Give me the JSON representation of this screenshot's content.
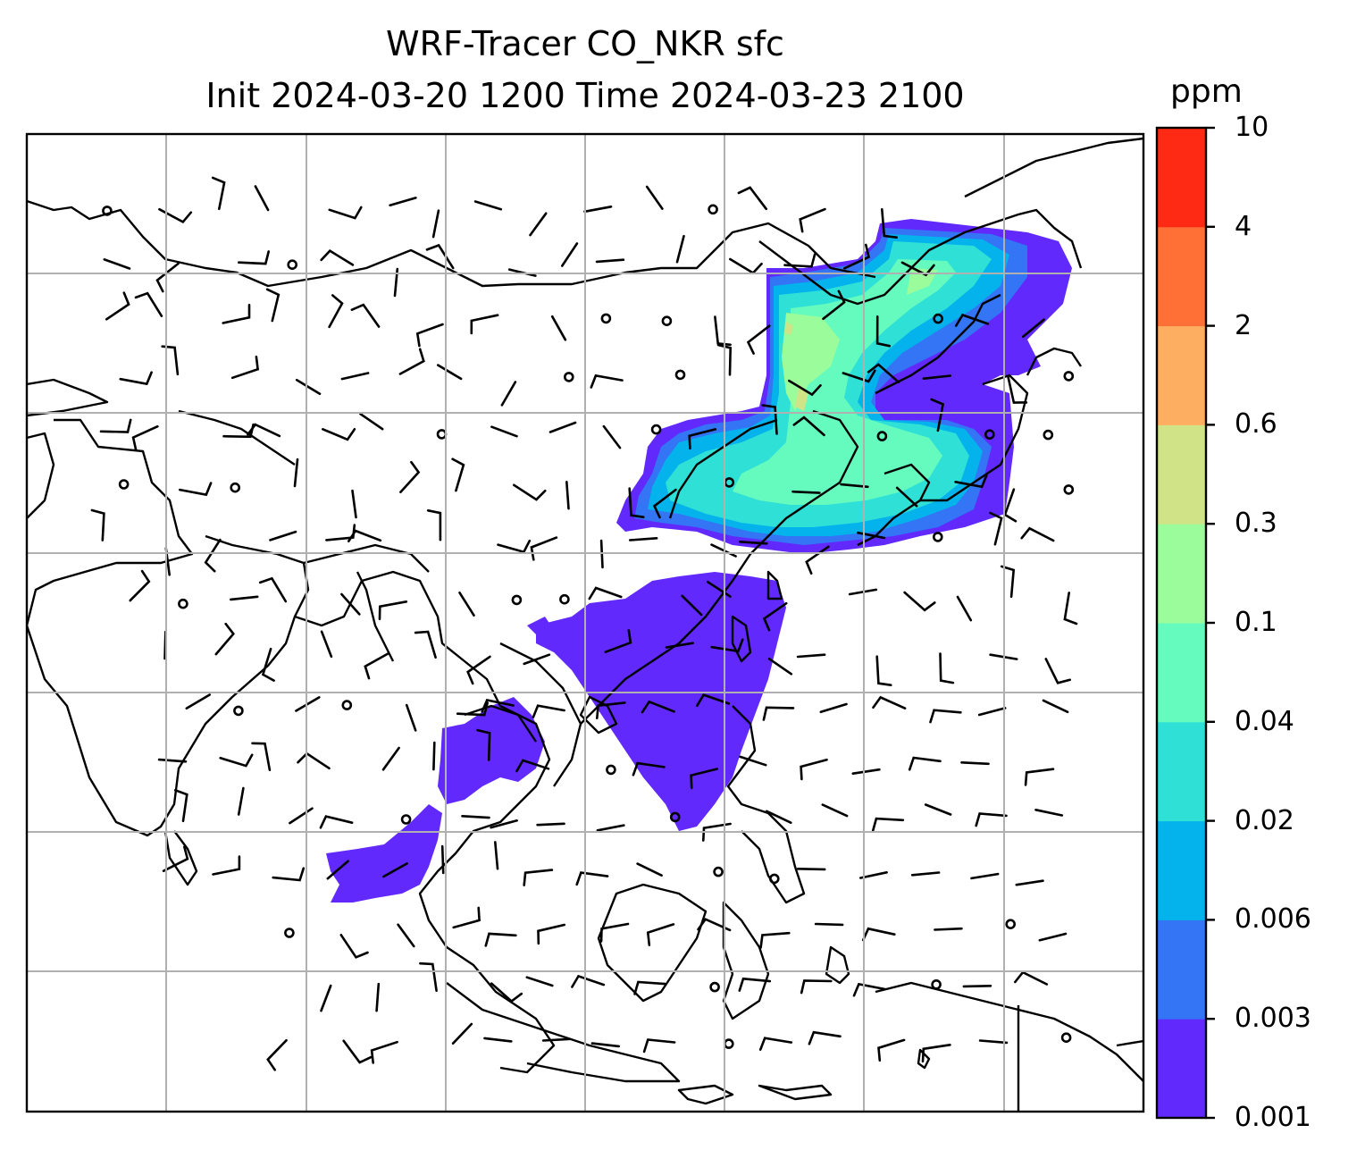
{
  "title_line1": "WRF-Tracer CO_NKR sfc",
  "title_line2": "Init 2024-03-20 1200 Time 2024-03-23 2100",
  "colorbar": {
    "unit": "ppm",
    "levels": [
      "0.001",
      "0.003",
      "0.006",
      "0.02",
      "0.04",
      "0.1",
      "0.3",
      "0.6",
      "2",
      "4",
      "10"
    ],
    "colors": [
      "#6129fc",
      "#3375f5",
      "#04b3eb",
      "#2fe0d6",
      "#66fbbe",
      "#9afc9a",
      "#d0e386",
      "#feae61",
      "#fe7036",
      "#ff2a13"
    ]
  },
  "map": {
    "field": "CO_NKR tracer concentration (shaded)",
    "overlay": "wind barbs",
    "gridlines": true
  }
}
